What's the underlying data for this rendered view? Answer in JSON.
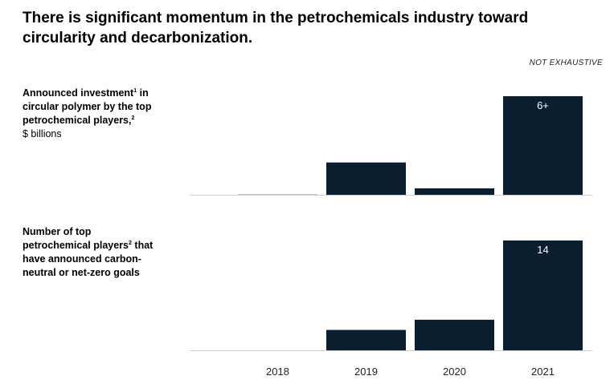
{
  "header": {
    "title": "There is significant momentum in the petrochemicals industry toward circularity and decarbonization.",
    "note": "NOT EXHAUSTIVE"
  },
  "colors": {
    "bar": "#0b1e2e",
    "baseline": "#cfcfcf",
    "background": "#ffffff"
  },
  "chart_data": [
    {
      "type": "bar",
      "label_lines": [
        "Announced investment",
        "in",
        "circular polymer by the top",
        "petrochemical players,"
      ],
      "footnote_1": "1",
      "footnote_2": "2",
      "unit": "$ billions",
      "categories": [
        "2018",
        "2019",
        "2020",
        "2021"
      ],
      "values": [
        0.05,
        2.0,
        0.4,
        6.1
      ],
      "data_labels": [
        "",
        "",
        "",
        "6+"
      ],
      "ylim": [
        0,
        6.1
      ]
    },
    {
      "type": "bar",
      "label_lines": [
        "Number of top",
        "petrochemical players",
        "that",
        "have announced carbon-",
        "neutral or net-zero goals"
      ],
      "footnote_2": "2",
      "categories": [
        "2018",
        "2019",
        "2020",
        "2021"
      ],
      "values": [
        0,
        2.6,
        3.9,
        14
      ],
      "data_labels": [
        "",
        "",
        "",
        "14"
      ],
      "ylim": [
        0,
        14
      ]
    }
  ]
}
